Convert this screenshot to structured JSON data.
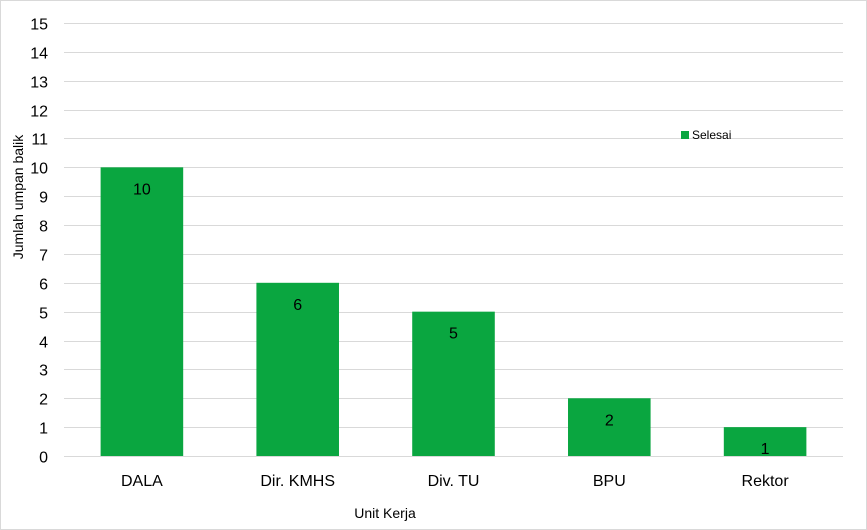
{
  "chart_data": {
    "type": "bar",
    "categories": [
      "DALA",
      "Dir. KMHS",
      "Div. TU",
      "BPU",
      "Rektor"
    ],
    "series": [
      {
        "name": "Selesai",
        "values": [
          10,
          6,
          5,
          2,
          1
        ],
        "color": "#0aa640"
      }
    ],
    "xlabel": "Unit Kerja",
    "ylabel": "Jumlah umpan balik",
    "ylim": [
      0,
      15
    ],
    "yticks": [
      0,
      1,
      2,
      3,
      4,
      5,
      6,
      7,
      8,
      9,
      10,
      11,
      12,
      13,
      14,
      15
    ],
    "grid": true,
    "legend": "right",
    "data_labels": true
  }
}
